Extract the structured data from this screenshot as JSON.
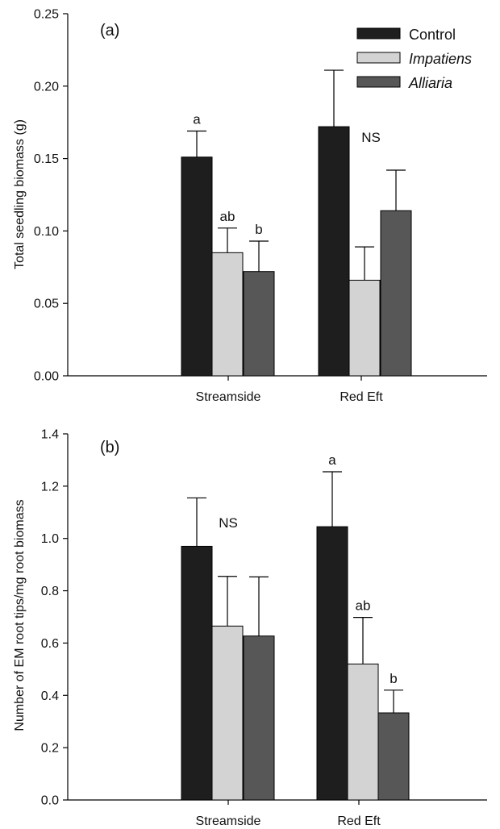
{
  "colors": {
    "Control": "#1e1e1e",
    "Impatiens": "#d3d3d3",
    "Alliaria": "#575757"
  },
  "chart_data": [
    {
      "type": "bar",
      "panel_label": "(a)",
      "ylabel": "Total seedling biomass (g)",
      "xlabel": "",
      "ylim": [
        0,
        0.25
      ],
      "yticks": [
        "0.00",
        "0.05",
        "0.10",
        "0.15",
        "0.20",
        "0.25"
      ],
      "categories": [
        "Streamside",
        "Red Eft"
      ],
      "legend": {
        "position": "top-right",
        "entries": [
          "Control",
          "Impatiens",
          "Alliaria"
        ]
      },
      "series": [
        {
          "name": "Control",
          "values": [
            0.151,
            0.172
          ],
          "errors": [
            0.018,
            0.039
          ]
        },
        {
          "name": "Impatiens",
          "values": [
            0.085,
            0.066
          ],
          "errors": [
            0.017,
            0.023
          ]
        },
        {
          "name": "Alliaria",
          "values": [
            0.072,
            0.114
          ],
          "errors": [
            0.021,
            0.028
          ]
        }
      ],
      "annotations": [
        {
          "category": 0,
          "series": 0,
          "text": "a"
        },
        {
          "category": 0,
          "series": 1,
          "text": "ab"
        },
        {
          "category": 0,
          "series": 2,
          "text": "b"
        },
        {
          "category": 1,
          "series": 1,
          "text": "NS"
        }
      ]
    },
    {
      "type": "bar",
      "panel_label": "(b)",
      "ylabel": "Number of EM root tips/mg root biomass",
      "xlabel": "",
      "ylim": [
        0,
        1.4
      ],
      "yticks": [
        "0.0",
        "0.2",
        "0.4",
        "0.6",
        "0.8",
        "1.0",
        "1.2",
        "1.4"
      ],
      "categories": [
        "Streamside",
        "Red Eft"
      ],
      "series": [
        {
          "name": "Control",
          "values": [
            0.97,
            1.045
          ],
          "errors": [
            0.185,
            0.21
          ]
        },
        {
          "name": "Impatiens",
          "values": [
            0.665,
            0.52
          ],
          "errors": [
            0.19,
            0.178
          ]
        },
        {
          "name": "Alliaria",
          "values": [
            0.627,
            0.333
          ],
          "errors": [
            0.226,
            0.087
          ]
        }
      ],
      "annotations": [
        {
          "category": 0,
          "series": 1,
          "text": "NS"
        },
        {
          "category": 1,
          "series": 0,
          "text": "a"
        },
        {
          "category": 1,
          "series": 1,
          "text": "ab"
        },
        {
          "category": 1,
          "series": 2,
          "text": "b"
        }
      ]
    }
  ]
}
